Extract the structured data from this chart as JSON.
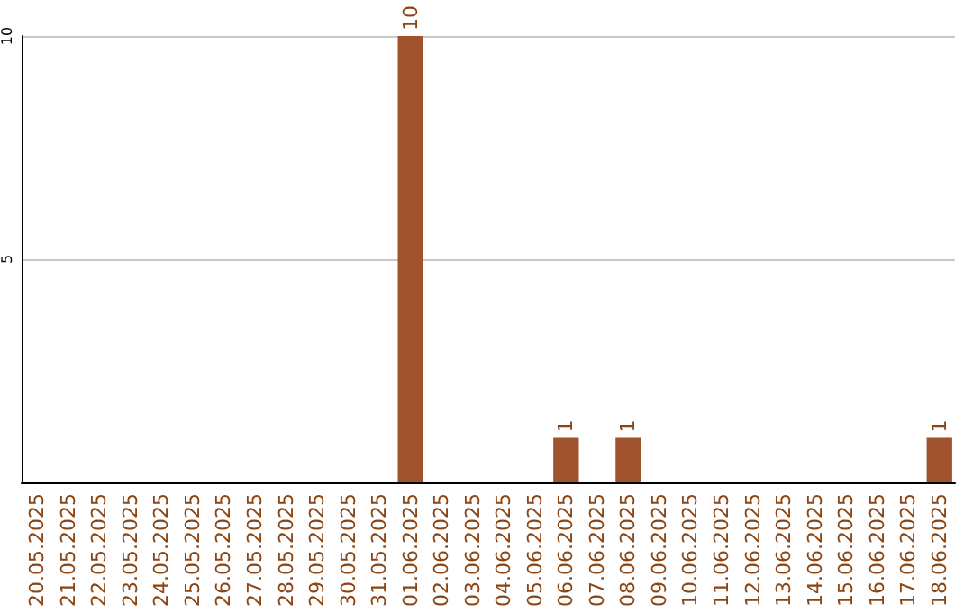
{
  "chart_data": {
    "type": "bar",
    "categories": [
      "20.05.2025",
      "21.05.2025",
      "22.05.2025",
      "23.05.2025",
      "24.05.2025",
      "25.05.2025",
      "26.05.2025",
      "27.05.2025",
      "28.05.2025",
      "29.05.2025",
      "30.05.2025",
      "31.05.2025",
      "01.06.2025",
      "02.06.2025",
      "03.06.2025",
      "04.06.2025",
      "05.06.2025",
      "06.06.2025",
      "07.06.2025",
      "08.06.2025",
      "09.06.2025",
      "10.06.2025",
      "11.06.2025",
      "12.06.2025",
      "13.06.2025",
      "14.06.2025",
      "15.06.2025",
      "16.06.2025",
      "17.06.2025",
      "18.06.2025"
    ],
    "values": [
      0,
      0,
      0,
      0,
      0,
      0,
      0,
      0,
      0,
      0,
      0,
      0,
      10,
      0,
      0,
      0,
      0,
      1,
      0,
      1,
      0,
      0,
      0,
      0,
      0,
      0,
      0,
      0,
      0,
      1
    ],
    "value_labels": [
      null,
      null,
      null,
      null,
      null,
      null,
      null,
      null,
      null,
      null,
      null,
      null,
      "10",
      null,
      null,
      null,
      null,
      "1",
      null,
      "1",
      null,
      null,
      null,
      null,
      null,
      null,
      null,
      null,
      null,
      "1"
    ],
    "color": "#a0522d",
    "ylim": [
      0,
      10
    ],
    "yticks": [
      {
        "value": 0,
        "label": null
      },
      5,
      10
    ],
    "grid": "y"
  }
}
